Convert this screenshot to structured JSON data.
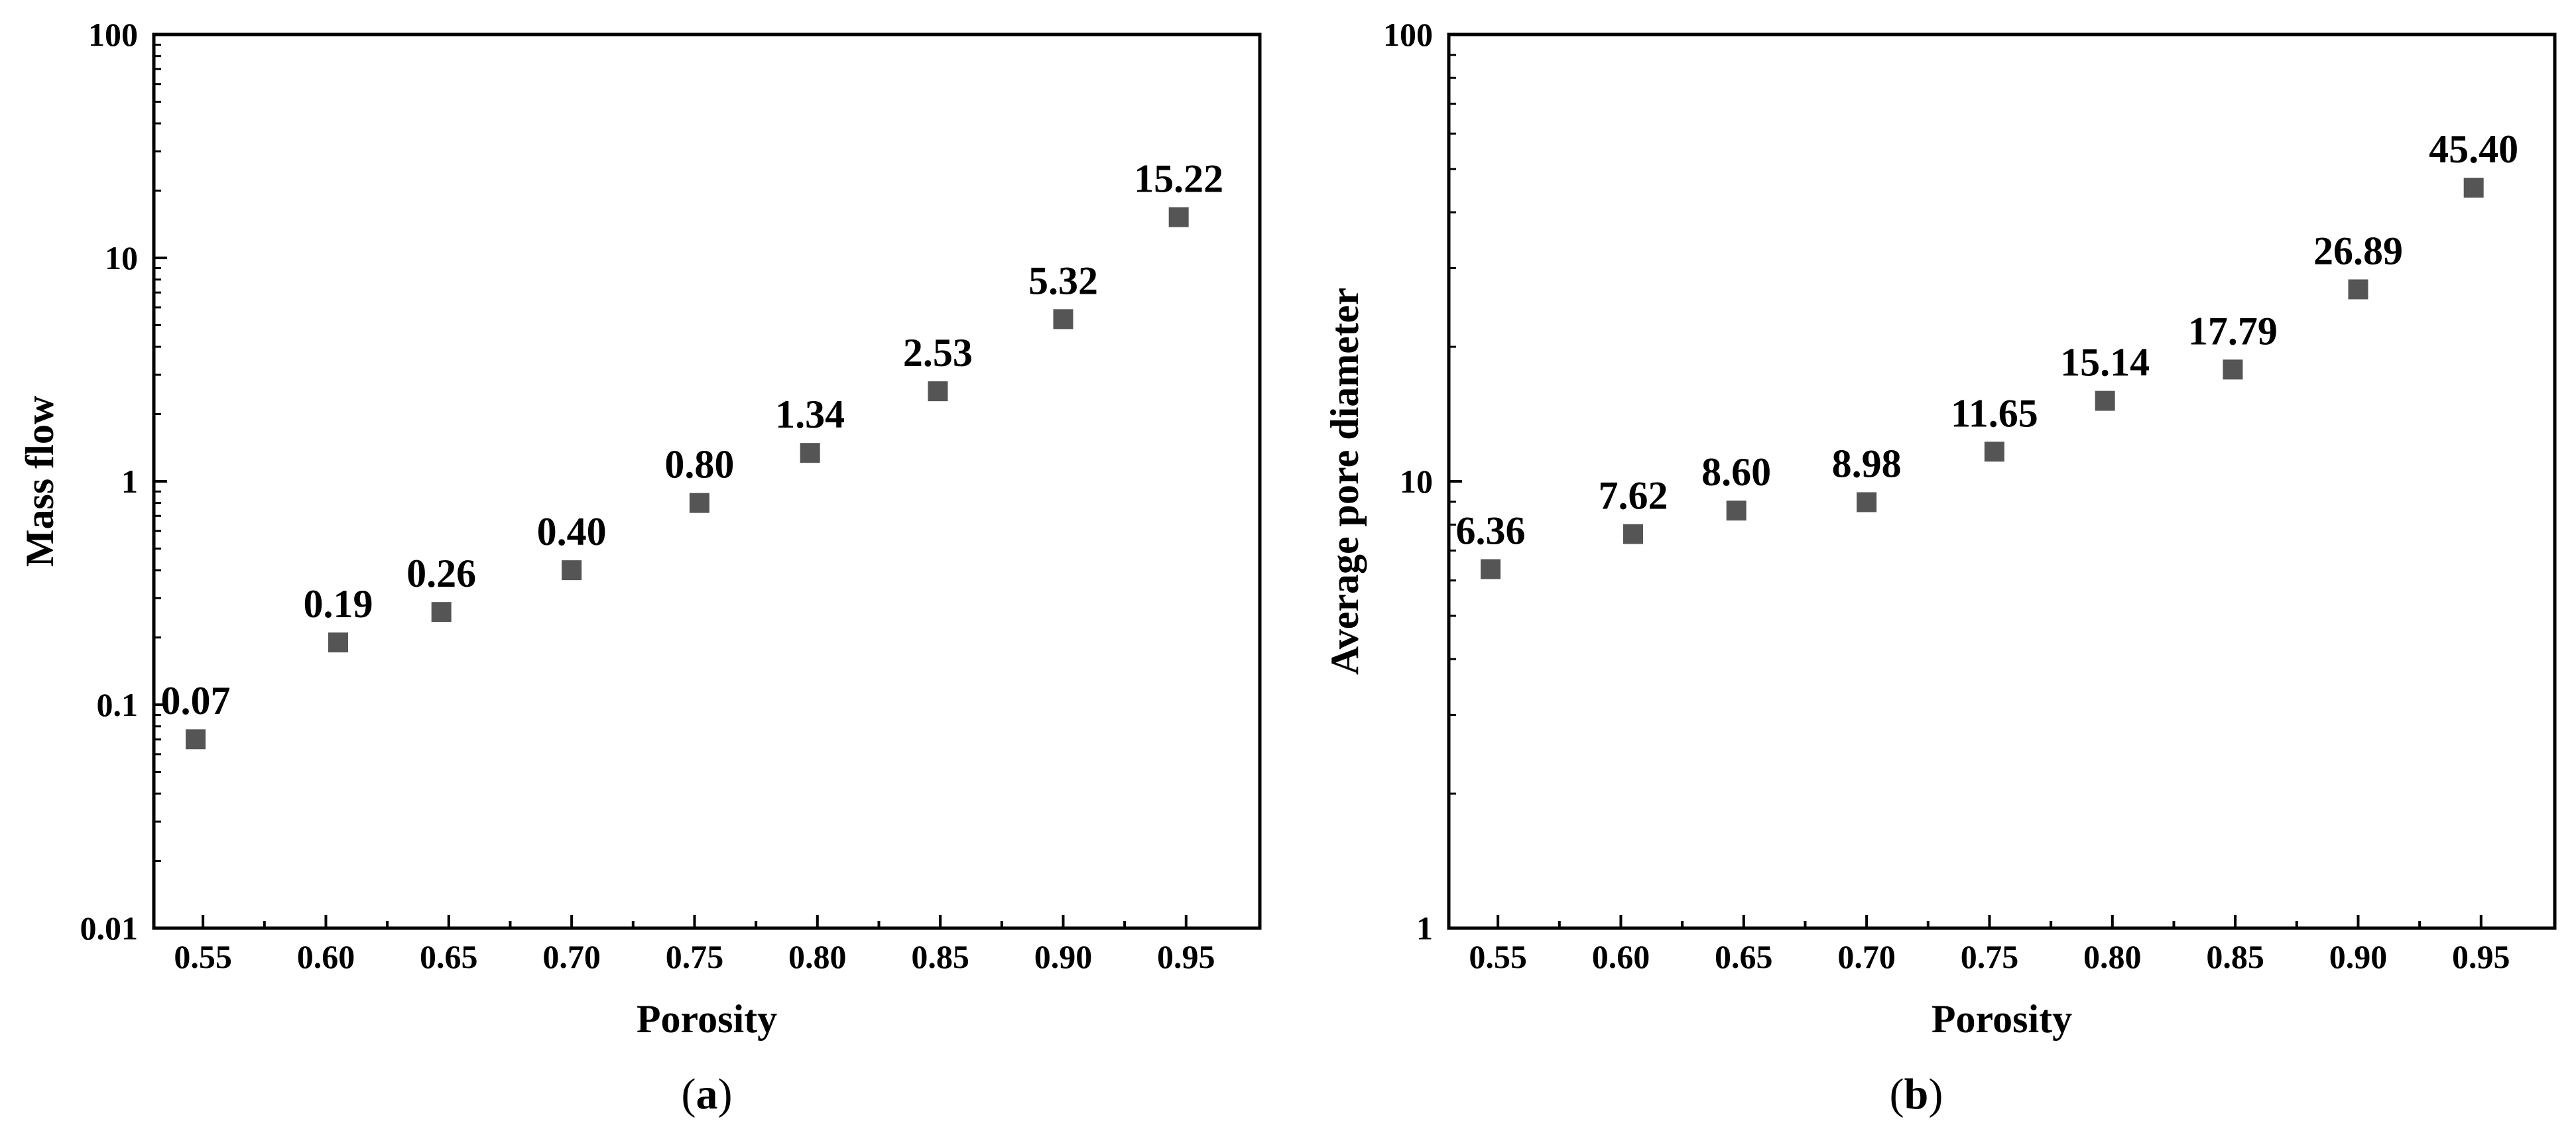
{
  "figure": {
    "panels": [
      "(a)",
      "(b)"
    ]
  },
  "chart_data": [
    {
      "type": "scatter",
      "panel_label": "(a)",
      "panel_letter": "a",
      "title": "",
      "xlabel": "Porosity",
      "ylabel": "Mass flow",
      "yscale": "log",
      "xlim": [
        0.53,
        0.98
      ],
      "ylim": [
        0.01,
        100
      ],
      "x_ticks": [
        {
          "value": 0.55,
          "label": "0.55"
        },
        {
          "value": 0.6,
          "label": "0.60"
        },
        {
          "value": 0.65,
          "label": "0.65"
        },
        {
          "value": 0.7,
          "label": "0.70"
        },
        {
          "value": 0.75,
          "label": "0.75"
        },
        {
          "value": 0.8,
          "label": "0.80"
        },
        {
          "value": 0.85,
          "label": "0.85"
        },
        {
          "value": 0.9,
          "label": "0.90"
        },
        {
          "value": 0.95,
          "label": "0.95"
        }
      ],
      "y_ticks": [
        {
          "value": 0.01,
          "label": "0.01"
        },
        {
          "value": 0.1,
          "label": "0.1"
        },
        {
          "value": 1,
          "label": "1"
        },
        {
          "value": 10,
          "label": "10"
        },
        {
          "value": 100,
          "label": "100"
        }
      ],
      "grid": false,
      "marker_color": "#555555",
      "points": [
        {
          "x": 0.547,
          "y": 0.07,
          "label": "0.07"
        },
        {
          "x": 0.605,
          "y": 0.19,
          "label": "0.19"
        },
        {
          "x": 0.647,
          "y": 0.26,
          "label": "0.26"
        },
        {
          "x": 0.7,
          "y": 0.4,
          "label": "0.40"
        },
        {
          "x": 0.752,
          "y": 0.8,
          "label": "0.80"
        },
        {
          "x": 0.797,
          "y": 1.34,
          "label": "1.34"
        },
        {
          "x": 0.849,
          "y": 2.53,
          "label": "2.53"
        },
        {
          "x": 0.9,
          "y": 5.32,
          "label": "5.32"
        },
        {
          "x": 0.947,
          "y": 15.22,
          "label": "15.22"
        }
      ]
    },
    {
      "type": "scatter",
      "panel_label": "(b)",
      "panel_letter": "b",
      "title": "",
      "xlabel": "Porosity",
      "ylabel": "Average pore diameter",
      "yscale": "log",
      "xlim": [
        0.53,
        0.98
      ],
      "ylim": [
        1,
        100
      ],
      "x_ticks": [
        {
          "value": 0.55,
          "label": "0.55"
        },
        {
          "value": 0.6,
          "label": "0.60"
        },
        {
          "value": 0.65,
          "label": "0.65"
        },
        {
          "value": 0.7,
          "label": "0.70"
        },
        {
          "value": 0.75,
          "label": "0.75"
        },
        {
          "value": 0.8,
          "label": "0.80"
        },
        {
          "value": 0.85,
          "label": "0.85"
        },
        {
          "value": 0.9,
          "label": "0.90"
        },
        {
          "value": 0.95,
          "label": "0.95"
        }
      ],
      "y_ticks": [
        {
          "value": 1,
          "label": "1"
        },
        {
          "value": 10,
          "label": "10"
        },
        {
          "value": 100,
          "label": "100"
        }
      ],
      "grid": false,
      "marker_color": "#555555",
      "points": [
        {
          "x": 0.547,
          "y": 6.36,
          "label": "6.36"
        },
        {
          "x": 0.605,
          "y": 7.62,
          "label": "7.62"
        },
        {
          "x": 0.647,
          "y": 8.6,
          "label": "8.60"
        },
        {
          "x": 0.7,
          "y": 8.98,
          "label": "8.98"
        },
        {
          "x": 0.752,
          "y": 11.65,
          "label": "11.65"
        },
        {
          "x": 0.797,
          "y": 15.14,
          "label": "15.14"
        },
        {
          "x": 0.849,
          "y": 17.79,
          "label": "17.79"
        },
        {
          "x": 0.9,
          "y": 26.89,
          "label": "26.89"
        },
        {
          "x": 0.947,
          "y": 45.4,
          "label": "45.40"
        }
      ]
    }
  ]
}
